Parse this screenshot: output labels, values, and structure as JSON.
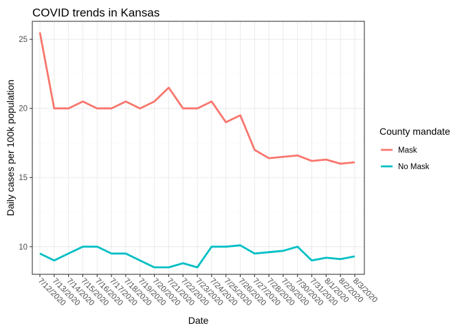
{
  "chart_data": {
    "type": "line",
    "title": "COVID trends in Kansas",
    "xlabel": "Date",
    "ylabel": "Daily cases per 100k population",
    "categories": [
      "7/12/2020",
      "7/13/2020",
      "7/14/2020",
      "7/15/2020",
      "7/16/2020",
      "7/17/2020",
      "7/18/2020",
      "7/19/2020",
      "7/20/2020",
      "7/21/2020",
      "7/22/2020",
      "7/23/2020",
      "7/24/2020",
      "7/25/2020",
      "7/26/2020",
      "7/27/2020",
      "7/28/2020",
      "7/29/2020",
      "7/30/2020",
      "7/31/2020",
      "8/1/2020",
      "8/2/2020",
      "8/3/2020"
    ],
    "ylim": [
      8,
      26.3
    ],
    "yticks": [
      10,
      15,
      20,
      25
    ],
    "grid": true,
    "legend": {
      "title": "County mandate",
      "position": "right"
    },
    "series": [
      {
        "name": "Mask",
        "color": "#F8766D",
        "values": [
          25.5,
          20.0,
          20.0,
          20.5,
          20.0,
          20.0,
          20.5,
          20.0,
          20.5,
          21.5,
          20.0,
          20.0,
          20.5,
          19.0,
          19.5,
          17.0,
          16.4,
          16.5,
          16.6,
          16.2,
          16.3,
          16.0,
          16.1
        ]
      },
      {
        "name": "No Mask",
        "color": "#00BFC4",
        "values": [
          9.5,
          9.0,
          9.5,
          10.0,
          10.0,
          9.5,
          9.5,
          9.0,
          8.5,
          8.5,
          8.8,
          8.5,
          10.0,
          10.0,
          10.1,
          9.5,
          9.6,
          9.7,
          10.0,
          9.0,
          9.2,
          9.1,
          9.3
        ]
      }
    ]
  }
}
